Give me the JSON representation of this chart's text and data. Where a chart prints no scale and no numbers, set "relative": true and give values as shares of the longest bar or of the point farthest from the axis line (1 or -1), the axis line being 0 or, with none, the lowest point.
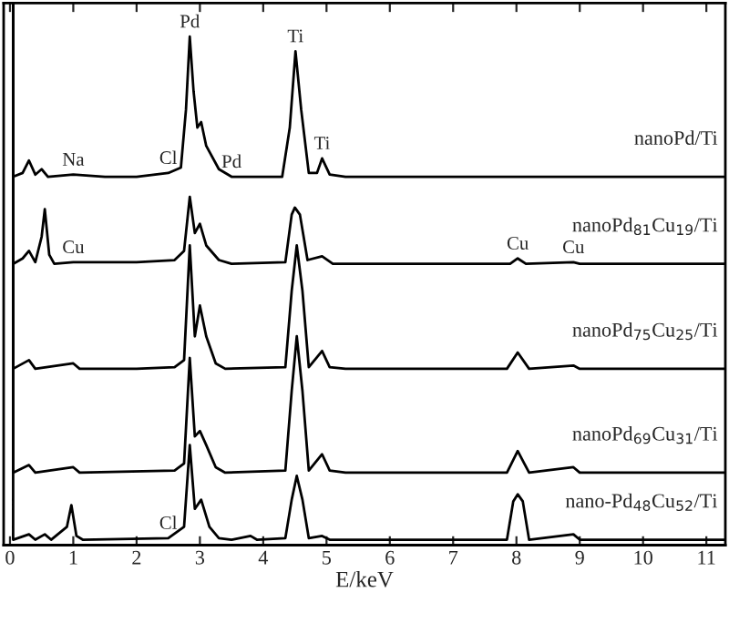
{
  "chart_data": {
    "type": "line",
    "relative": true,
    "xlabel": "E/keV",
    "xlim": [
      -0.1,
      11.3
    ],
    "xticks": [
      0,
      1,
      2,
      3,
      4,
      5,
      6,
      7,
      8,
      9,
      10,
      11
    ],
    "tick_labels": "x",
    "legend": false,
    "grid": false,
    "marker": "none",
    "line_style": "solid",
    "series": [
      {
        "name": "nanoPd/Ti",
        "color": "#000000",
        "x": [
          0.05,
          0.05,
          0.2,
          0.3,
          0.4,
          0.5,
          0.6,
          1.0,
          1.5,
          2.0,
          2.5,
          2.7,
          2.78,
          2.84,
          2.9,
          2.96,
          3.02,
          3.1,
          3.3,
          3.5,
          4.3,
          4.42,
          4.51,
          4.6,
          4.72,
          4.85,
          4.93,
          5.05,
          5.3,
          11.3
        ],
        "values": [
          1.0,
          0.681,
          0.688,
          0.711,
          0.685,
          0.695,
          0.681,
          0.685,
          0.681,
          0.681,
          0.688,
          0.698,
          0.805,
          0.94,
          0.839,
          0.772,
          0.782,
          0.738,
          0.695,
          0.681,
          0.681,
          0.772,
          0.913,
          0.805,
          0.688,
          0.688,
          0.715,
          0.685,
          0.681,
          0.681
        ]
      },
      {
        "name": "nanoPd$_{81}$Cu$_{19}$/Ti",
        "color": "#000000",
        "x": [
          0.05,
          0.05,
          0.2,
          0.3,
          0.4,
          0.5,
          0.55,
          0.62,
          0.7,
          1.0,
          2.0,
          2.6,
          2.75,
          2.84,
          2.92,
          3.0,
          3.1,
          3.3,
          3.5,
          4.35,
          4.45,
          4.5,
          4.58,
          4.7,
          4.93,
          5.1,
          7.9,
          8.02,
          8.15,
          8.9,
          9.0,
          11.3
        ],
        "values": [
          1.0,
          0.52,
          0.53,
          0.544,
          0.523,
          0.57,
          0.621,
          0.537,
          0.52,
          0.523,
          0.523,
          0.527,
          0.544,
          0.644,
          0.577,
          0.594,
          0.554,
          0.527,
          0.52,
          0.523,
          0.611,
          0.624,
          0.611,
          0.527,
          0.534,
          0.52,
          0.52,
          0.53,
          0.52,
          0.523,
          0.52,
          0.52
        ]
      },
      {
        "name": "nanoPd$_{75}$Cu$_{25}$/Ti",
        "color": "#000000",
        "x": [
          0.05,
          0.05,
          0.3,
          0.4,
          1.0,
          1.1,
          2.0,
          2.6,
          2.75,
          2.84,
          2.92,
          3.0,
          3.1,
          3.25,
          3.4,
          4.35,
          4.45,
          4.53,
          4.62,
          4.72,
          4.93,
          5.05,
          5.3,
          7.85,
          8.02,
          8.2,
          8.9,
          9.0,
          11.3
        ],
        "values": [
          1.0,
          0.326,
          0.342,
          0.326,
          0.336,
          0.326,
          0.326,
          0.329,
          0.342,
          0.554,
          0.386,
          0.443,
          0.386,
          0.336,
          0.326,
          0.329,
          0.47,
          0.554,
          0.47,
          0.329,
          0.359,
          0.329,
          0.326,
          0.326,
          0.356,
          0.326,
          0.332,
          0.326,
          0.326
        ]
      },
      {
        "name": "nanoPd$_{69}$Cu$_{31}$/Ti",
        "color": "#000000",
        "x": [
          0.05,
          0.05,
          0.3,
          0.4,
          1.0,
          1.1,
          2.6,
          2.75,
          2.84,
          2.92,
          3.0,
          3.1,
          3.25,
          3.4,
          4.35,
          4.45,
          4.53,
          4.62,
          4.72,
          4.93,
          5.05,
          5.3,
          7.85,
          8.02,
          8.2,
          8.9,
          9.0,
          11.3
        ],
        "values": [
          1.0,
          0.134,
          0.148,
          0.134,
          0.144,
          0.134,
          0.138,
          0.151,
          0.346,
          0.201,
          0.211,
          0.185,
          0.144,
          0.134,
          0.138,
          0.285,
          0.386,
          0.285,
          0.138,
          0.168,
          0.138,
          0.134,
          0.134,
          0.174,
          0.134,
          0.144,
          0.134,
          0.134
        ]
      },
      {
        "name": "nano-Pd$_{48}$Cu$_{52}$/Ti",
        "color": "#000000",
        "x": [
          0.05,
          0.05,
          0.3,
          0.4,
          0.55,
          0.65,
          0.9,
          0.97,
          1.05,
          1.15,
          2.5,
          2.75,
          2.84,
          2.92,
          3.02,
          3.15,
          3.3,
          3.5,
          3.8,
          3.9,
          4.35,
          4.45,
          4.53,
          4.62,
          4.72,
          4.93,
          5.05,
          7.85,
          7.95,
          8.02,
          8.1,
          8.2,
          8.9,
          9.0,
          11.3
        ],
        "values": [
          1.0,
          0.01,
          0.02,
          0.01,
          0.02,
          0.01,
          0.034,
          0.074,
          0.017,
          0.01,
          0.013,
          0.034,
          0.185,
          0.067,
          0.084,
          0.034,
          0.013,
          0.01,
          0.017,
          0.01,
          0.013,
          0.084,
          0.128,
          0.084,
          0.013,
          0.017,
          0.01,
          0.01,
          0.081,
          0.094,
          0.081,
          0.01,
          0.02,
          0.01,
          0.01
        ]
      }
    ],
    "annotations": [
      {
        "text": "Na",
        "x": 1.0,
        "y": 0.685
      },
      {
        "text": "Cl",
        "x": 2.5,
        "y": 0.688
      },
      {
        "text": "Pd",
        "x": 2.84,
        "y": 0.94
      },
      {
        "text": "Pd",
        "x": 3.5,
        "y": 0.681
      },
      {
        "text": "Ti",
        "x": 4.51,
        "y": 0.913
      },
      {
        "text": "Ti",
        "x": 4.93,
        "y": 0.715
      },
      {
        "text": "Cu",
        "x": 1.0,
        "y": 0.523
      },
      {
        "text": "Cu",
        "x": 8.02,
        "y": 0.53
      },
      {
        "text": "Cu",
        "x": 8.9,
        "y": 0.523
      },
      {
        "text": "Cl",
        "x": 2.5,
        "y": 0.013
      }
    ]
  }
}
